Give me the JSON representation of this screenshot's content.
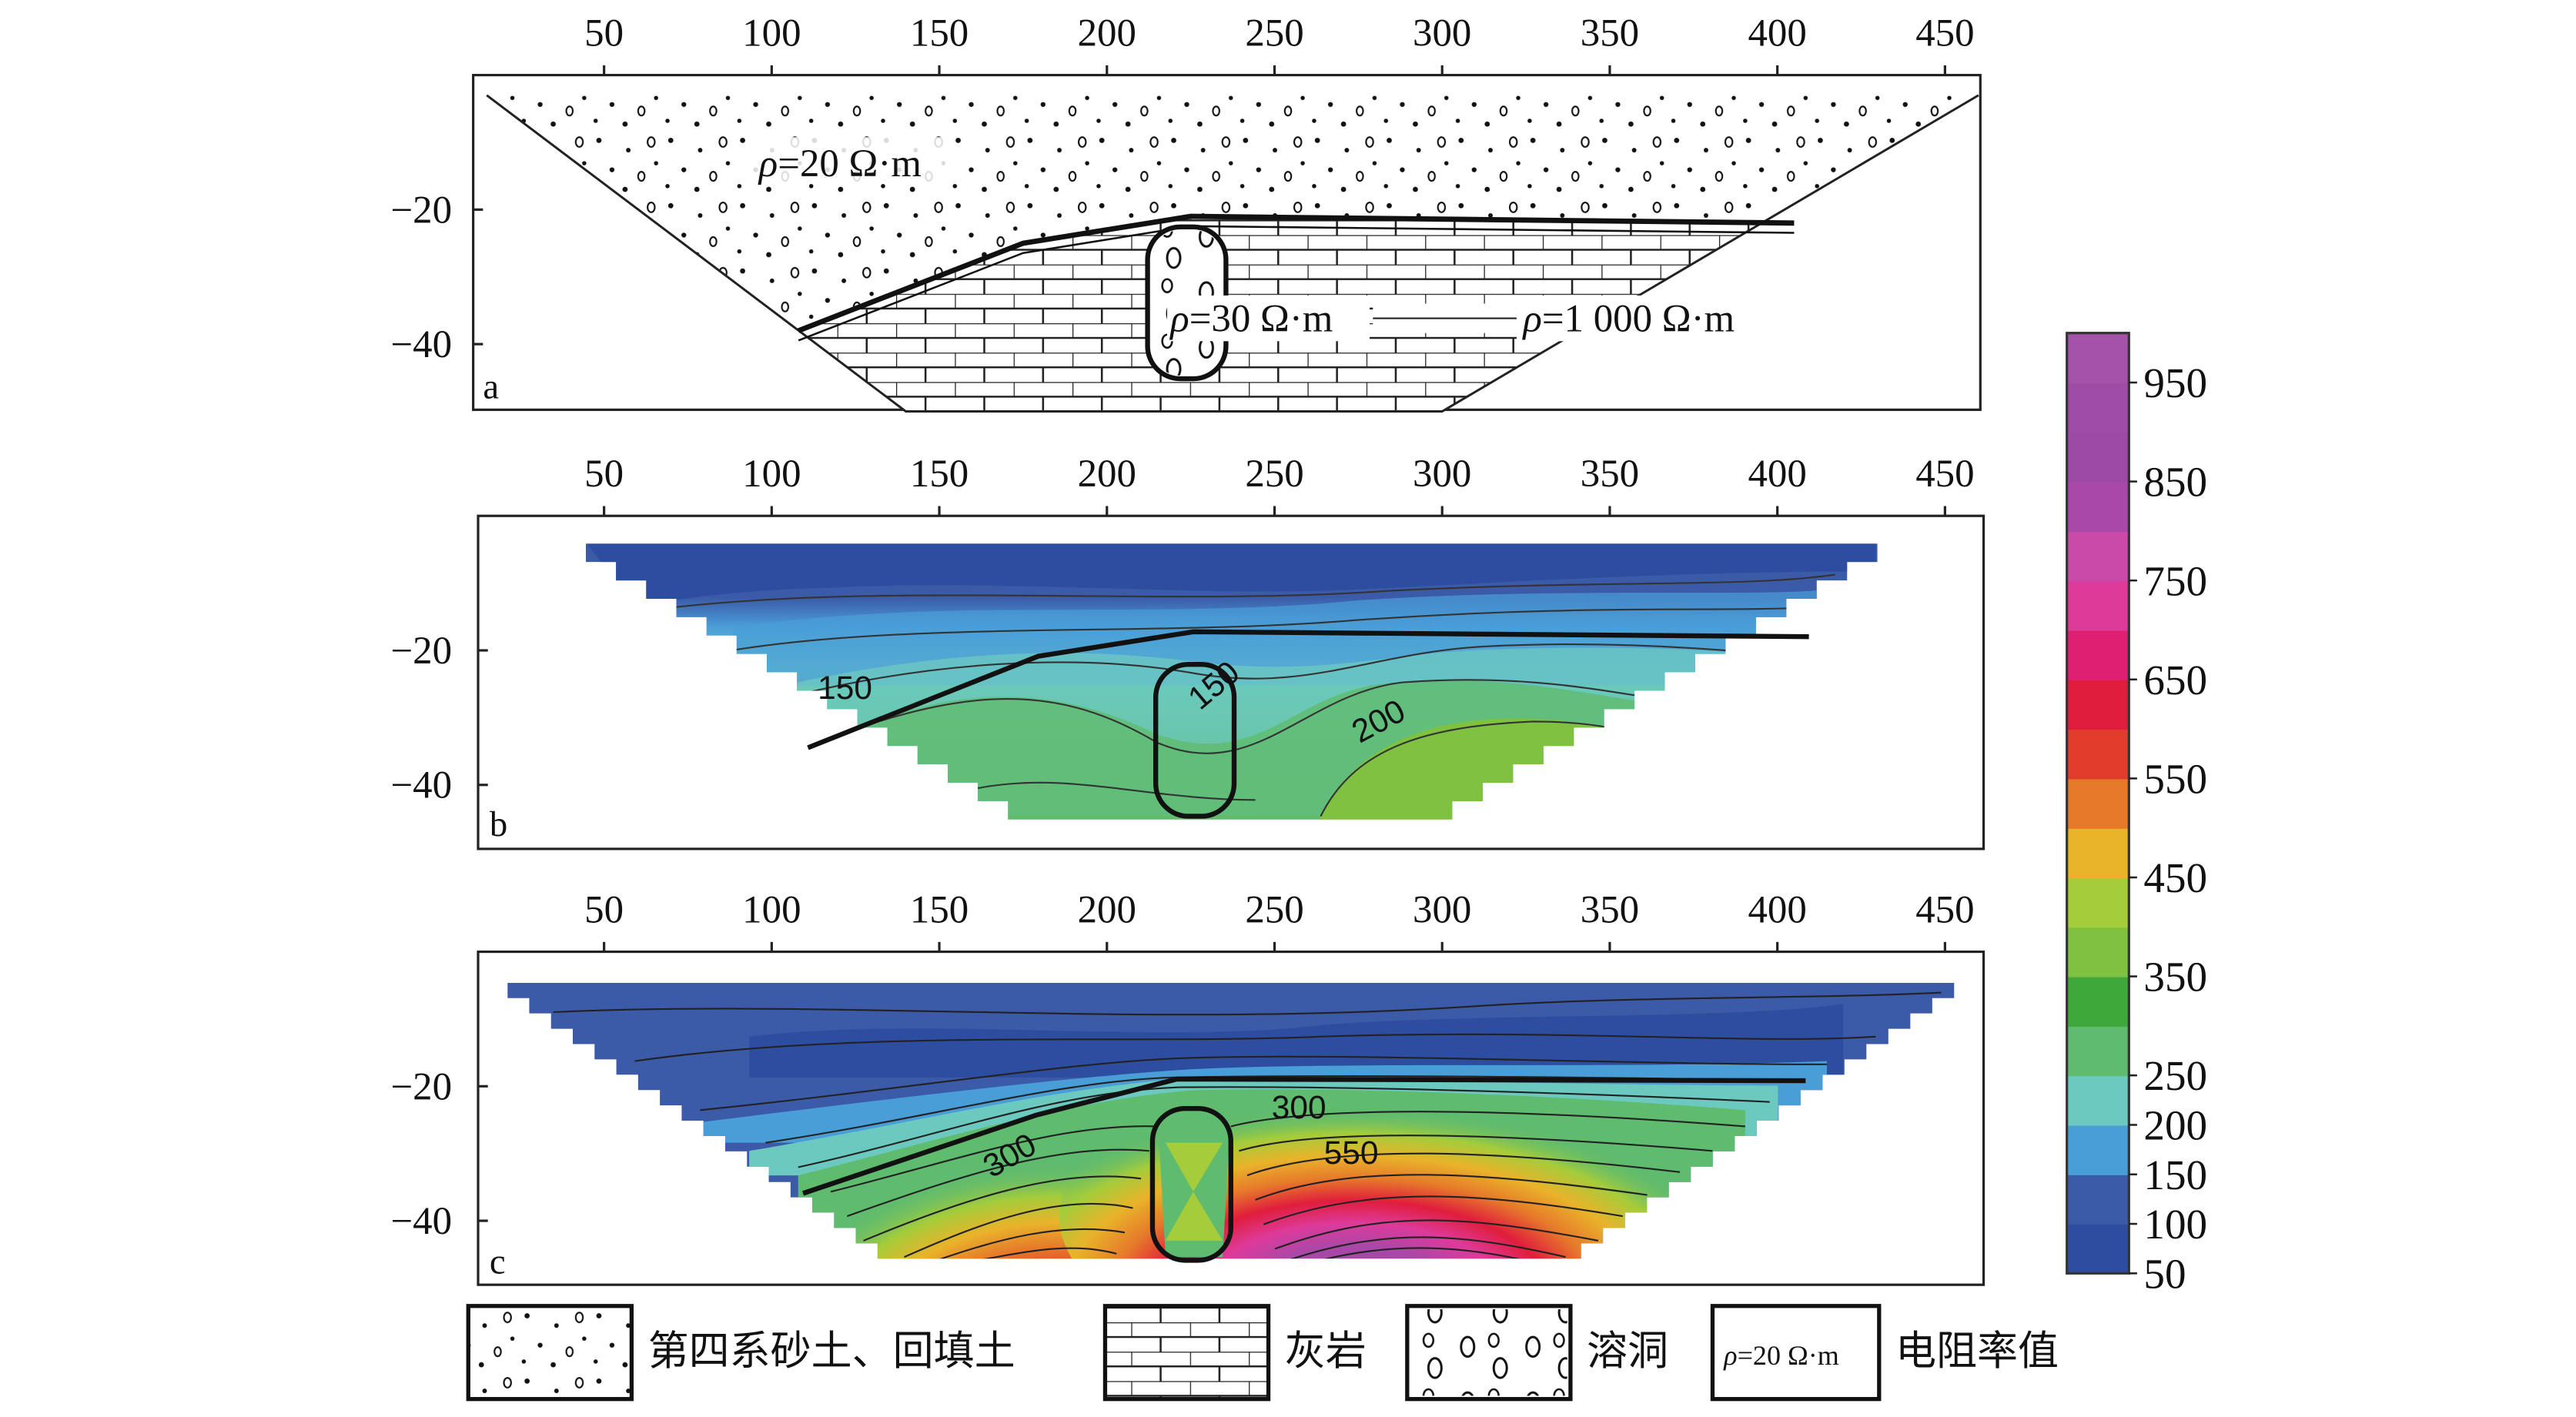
{
  "chart_data": [
    {
      "panel": "a",
      "type": "geologic-section",
      "x_ticks": [
        50,
        100,
        150,
        200,
        250,
        300,
        350,
        400,
        450
      ],
      "y_ticks": [
        -20,
        -40
      ],
      "panel_label": "a",
      "annotations": [
        "ρ=20 Ω·m",
        "ρ=30 Ω·m",
        "ρ=1 000 Ω·m"
      ],
      "interface": {
        "x": [
          108,
          175,
          225,
          405
        ],
        "y": [
          -38,
          -25,
          -21,
          -22
        ]
      },
      "cave": {
        "x_range": [
          212,
          236
        ],
        "y_range": [
          -25,
          -45
        ]
      },
      "trapezoid_top": {
        "x": [
          15,
          460
        ],
        "y": -3
      },
      "trapezoid_bottom": {
        "x": [
          140,
          300
        ],
        "y": -50
      }
    },
    {
      "panel": "b",
      "type": "contour",
      "x_ticks": [
        50,
        100,
        150,
        200,
        250,
        300,
        350,
        400,
        450
      ],
      "y_ticks": [
        -20,
        -40
      ],
      "panel_label": "b",
      "contour_labels": [
        "150",
        "150",
        "200"
      ],
      "value_range": [
        50,
        250
      ]
    },
    {
      "panel": "c",
      "type": "contour",
      "x_ticks": [
        50,
        100,
        150,
        200,
        250,
        300,
        350,
        400,
        450
      ],
      "y_ticks": [
        -20,
        -40
      ],
      "panel_label": "c",
      "contour_labels": [
        "300",
        "300",
        "550"
      ],
      "value_range": [
        50,
        950
      ]
    },
    {
      "type": "colorbar",
      "ticks": [
        50,
        100,
        150,
        200,
        250,
        350,
        450,
        550,
        650,
        750,
        850,
        950
      ],
      "range": [
        50,
        1000
      ],
      "colors": [
        "#2d4ea0",
        "#3b5aa8",
        "#4a9ed8",
        "#6cc9c0",
        "#5fbb6e",
        "#3fa83a",
        "#7fc241",
        "#a5cc3a",
        "#e9b32a",
        "#e67a2a",
        "#e23d2c",
        "#e01d3c",
        "#df1f72",
        "#de3a9a",
        "#c94aa8",
        "#a848a8",
        "#9c4aa6",
        "#9e4ca6",
        "#a552aa"
      ]
    }
  ],
  "legend": {
    "items": [
      {
        "label": "第四系砂土、回填土"
      },
      {
        "label": "灰岩"
      },
      {
        "label": "溶洞"
      },
      {
        "label": "电阻率值",
        "swatch_text": "ρ=20 Ω·m"
      }
    ]
  }
}
